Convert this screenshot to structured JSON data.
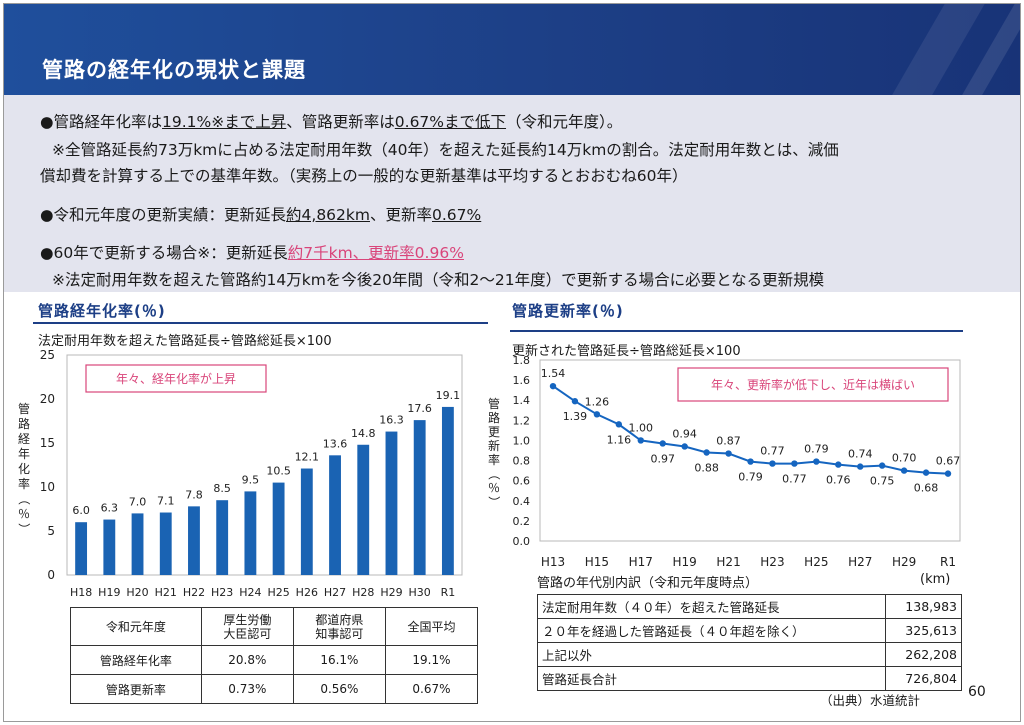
{
  "header": {
    "title": "管路の経年化の現状と課題"
  },
  "summary": {
    "l1": {
      "a": "●管路経年化率は",
      "b": "19.1%※まで上昇",
      "c": "、管路更新率は",
      "d": "0.67%まで低下",
      "e": "（令和元年度）。"
    },
    "l2": "※全管路延長約73万kmに占める法定耐用年数（40年）を超えた延長約14万kmの割合。法定耐用年数とは、減価",
    "l3": "償却費を計算する上での基準年数。（実務上の一般的な更新基準は平均するとおおむね60年）",
    "l4": {
      "a": "●令和元年度の更新実績：更新延長",
      "b": "約4,862km",
      "c": "、更新率",
      "d": "0.67%"
    },
    "l5": {
      "a": "●60年で更新する場合※：更新延長",
      "b": "約7千km、更新率0.96%"
    },
    "l6": "※法定耐用年数を超えた管路約14万kmを今後20年間（令和2～21年度）で更新する場合に必要となる更新規模"
  },
  "left": {
    "section_title": "管路経年化率(％)",
    "formula": "法定耐用年数を超えた管路延長÷管路総延長×100",
    "callout": "年々、経年化率が上昇",
    "table": {
      "header": [
        "令和元年度",
        "厚生労働\n大臣認可",
        "都道府県\n知事認可",
        "全国平均"
      ],
      "rows": [
        [
          "管路経年化率",
          "20.8%",
          "16.1%",
          "19.1%"
        ],
        [
          "管路更新率",
          "0.73%",
          "0.56%",
          "0.67%"
        ]
      ]
    }
  },
  "right": {
    "section_title": "管路更新率(％)",
    "formula": "更新された管路延長÷管路総延長×100",
    "callout": "年々、更新率が低下し、近年は横ばい",
    "table_title": "管路の年代別内訳（令和元年度時点）",
    "table_unit": "(km)",
    "table_rows": [
      [
        "法定耐用年数（４０年）を超えた管路延長",
        "138,983"
      ],
      [
        "２０年を経過した管路延長（４０年超を除く）",
        "325,613"
      ],
      [
        "上記以外",
        "262,208"
      ],
      [
        "管路延長合計",
        "726,804"
      ]
    ],
    "source": "（出典）水道統計"
  },
  "page_number": "60",
  "colors": {
    "header": "#1d3f86",
    "bar": "#1a63b3",
    "line": "#1565c0",
    "pink": "#d9457a"
  },
  "chart_data": [
    {
      "type": "bar",
      "title": "管路経年化率(％)",
      "ylabel": "管路経年化率（％）",
      "xlabel": "",
      "categories": [
        "H18",
        "H19",
        "H20",
        "H21",
        "H22",
        "H23",
        "H24",
        "H25",
        "H26",
        "H27",
        "H28",
        "H29",
        "H30",
        "R1"
      ],
      "values": [
        6.0,
        6.3,
        7.0,
        7.1,
        7.8,
        8.5,
        9.5,
        10.5,
        12.1,
        13.6,
        14.8,
        16.3,
        17.6,
        19.1
      ],
      "value_labels": [
        "6.0",
        "6.3",
        "7.0",
        "7.1",
        "7.8",
        "8.5",
        "9.5",
        "10.5",
        "12.1",
        "13.6",
        "14.8",
        "16.3",
        "17.6",
        "19.1"
      ],
      "ylim": [
        0,
        25
      ],
      "yticks": [
        0,
        5,
        10,
        15,
        20,
        25
      ],
      "grid": false
    },
    {
      "type": "line",
      "title": "管路更新率(％)",
      "ylabel": "管路更新率（％）",
      "xlabel": "",
      "x": [
        "H13",
        "H14",
        "H15",
        "H16",
        "H17",
        "H18",
        "H19",
        "H20",
        "H21",
        "H22",
        "H23",
        "H24",
        "H25",
        "H26",
        "H27",
        "H28",
        "H29",
        "H30",
        "R1"
      ],
      "values": [
        1.54,
        1.39,
        1.26,
        1.16,
        1.0,
        0.97,
        0.94,
        0.88,
        0.87,
        0.79,
        0.77,
        0.77,
        0.79,
        0.76,
        0.74,
        0.75,
        0.7,
        0.68,
        0.67
      ],
      "value_labels": [
        "1.54",
        "1.39",
        "1.26",
        "1.16",
        "1.00",
        "0.97",
        "0.94",
        "0.88",
        "0.87",
        "0.79",
        "0.77",
        "0.77",
        "0.79",
        "0.76",
        "0.74",
        "0.75",
        "0.70",
        "0.68",
        "0.67"
      ],
      "xtick_labels": [
        "H13",
        "H15",
        "H17",
        "H19",
        "H21",
        "H23",
        "H25",
        "H27",
        "H29",
        "R1"
      ],
      "ylim": [
        0,
        1.8
      ],
      "yticks": [
        "0.0",
        "0.2",
        "0.4",
        "0.6",
        "0.8",
        "1.0",
        "1.2",
        "1.4",
        "1.6",
        "1.8"
      ],
      "grid": false
    }
  ]
}
